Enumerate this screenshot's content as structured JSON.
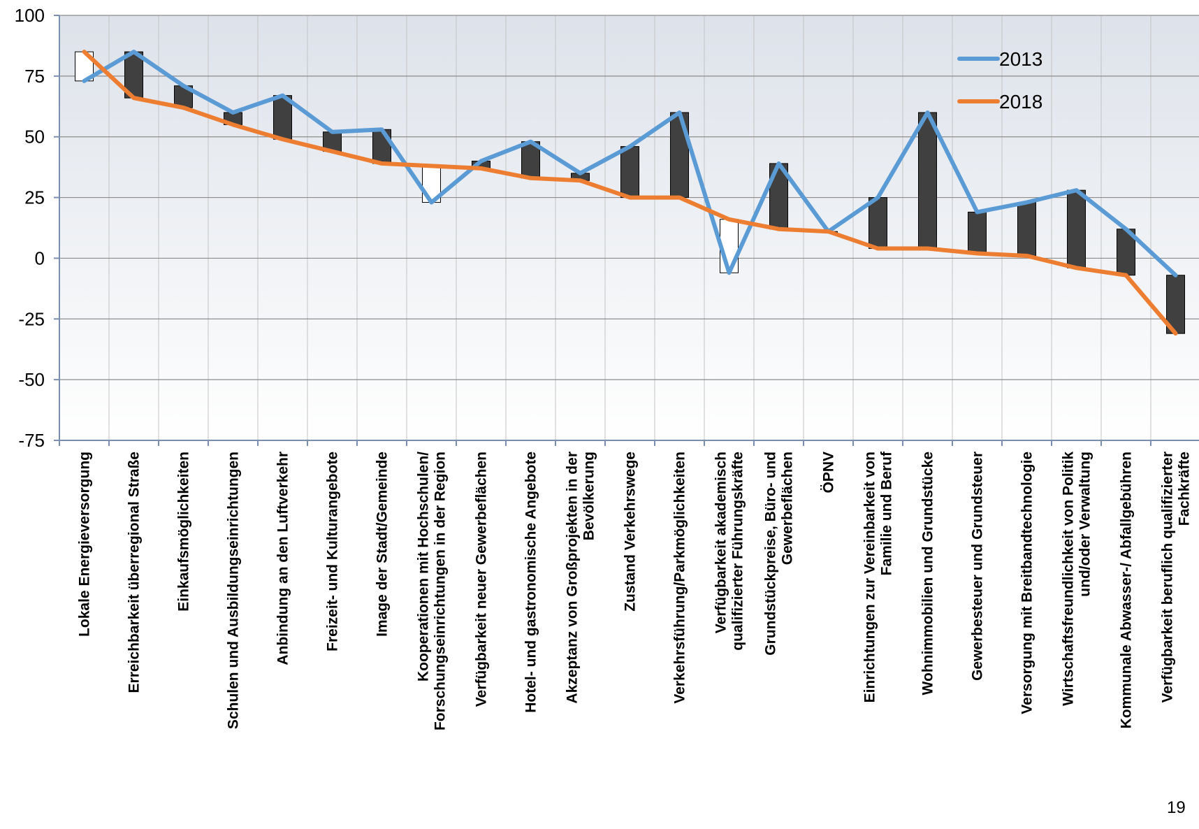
{
  "chart_data": {
    "type": "line",
    "categories": [
      "Lokale Energieversorgung",
      "Erreichbarkeit überregional Straße",
      "Einkaufsmöglichkeiten",
      "Schulen und Ausbildungseinrichtungen",
      "Anbindung an den Luftverkehr",
      "Freizeit- und Kulturangebote",
      "Image der Stadt/Gemeinde",
      "Kooperationen mit Hochschulen/ Forschungseinrichtungen in der Region",
      "Verfügbarkeit neuer Gewerbeflächen",
      "Hotel- und gastronomische Angebote",
      "Akzeptanz von Großprojekten in der Bevölkerung",
      "Zustand Verkehrswege",
      "Verkehrsführung/Parkmöglichkeiten",
      "Verfügbarkeit akademisch qualifizierter Führungskräfte",
      "Grundstückpreise, Büro- und Gewerbeflächen",
      "ÖPNV",
      "Einrichtungen zur Vereinbarkeit von Familie und Beruf",
      "Wohnimmobilien und Grundstücke",
      "Gewerbesteuer und Grundsteuer",
      "Versorgung mit Breitbandtechnologie",
      "Wirtschaftsfreundlichkeit von Politik und/oder Verwaltung",
      "Kommunale Abwasser-/ Abfallgebühren",
      "Verfügbarkeit beruflich qualifizierter Fachkräfte"
    ],
    "series": [
      {
        "name": "2013",
        "color": "#5b9bd5",
        "values": [
          73,
          85,
          71,
          60,
          67,
          52,
          53,
          23,
          40,
          48,
          35,
          46,
          60,
          -6,
          39,
          11,
          25,
          60,
          19,
          23,
          28,
          12,
          -7
        ]
      },
      {
        "name": "2018",
        "color": "#ed7d31",
        "values": [
          85,
          66,
          62,
          55,
          49,
          44,
          39,
          38,
          37,
          33,
          32,
          25,
          25,
          16,
          12,
          11,
          4,
          4,
          2,
          1,
          -4,
          -7,
          -31
        ]
      }
    ],
    "ylim": [
      -75,
      100
    ],
    "yticks": [
      100,
      75,
      50,
      25,
      0,
      -25,
      -50,
      -75
    ],
    "grid": true,
    "legend_position": "top-right",
    "up_bar_color": "#ffffff",
    "down_bar_color": "#404040"
  },
  "page_number": "19"
}
